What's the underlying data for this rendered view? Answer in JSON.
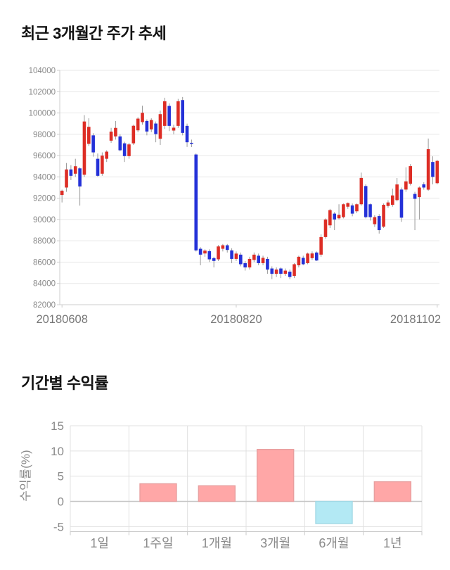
{
  "chart_data": [
    {
      "type": "candlestick",
      "title": "최근 3개월간 주가 추세",
      "ylim": [
        82000,
        104000
      ],
      "y_tick_step": 2000,
      "y_tick_labels": [
        "104000",
        "102000",
        "100000",
        "98000",
        "96000",
        "94000",
        "92000",
        "90000",
        "88000",
        "86000",
        "84000",
        "82000"
      ],
      "x_ticks": [
        {
          "index": 0,
          "label": "20180608"
        },
        {
          "index": 39,
          "label": "20180820"
        },
        {
          "index": 84,
          "label": "20181102"
        }
      ],
      "colors": {
        "up": "#dd2d25",
        "down": "#2431d8",
        "wick": "#999999",
        "grid": "#e7e7e7",
        "axis": "#cccccc",
        "tick_text": "#888888",
        "date_text": "#777777"
      },
      "candles": [
        [
          92300,
          92800,
          91600,
          92700
        ],
        [
          93000,
          95300,
          92600,
          94700
        ],
        [
          94700,
          95100,
          93700,
          94100
        ],
        [
          94300,
          95700,
          94000,
          95000
        ],
        [
          94800,
          94900,
          91300,
          93100
        ],
        [
          94200,
          99800,
          94000,
          99200
        ],
        [
          97100,
          99500,
          96900,
          98700
        ],
        [
          97900,
          98100,
          95900,
          96300
        ],
        [
          95700,
          96200,
          94000,
          94100
        ],
        [
          94300,
          96300,
          94100,
          96000
        ],
        [
          95700,
          96500,
          95400,
          96370
        ],
        [
          97400,
          98600,
          97200,
          98250
        ],
        [
          97800,
          99250,
          97500,
          98600
        ],
        [
          97800,
          98000,
          96400,
          96500
        ],
        [
          97150,
          97300,
          95400,
          95950
        ],
        [
          95950,
          97200,
          95700,
          97050
        ],
        [
          97150,
          98900,
          97000,
          98800
        ],
        [
          98370,
          99600,
          98200,
          99470
        ],
        [
          99140,
          100680,
          98900,
          100020
        ],
        [
          99250,
          99400,
          97900,
          98260
        ],
        [
          98460,
          99500,
          98200,
          99340
        ],
        [
          99010,
          99200,
          97250,
          98020
        ],
        [
          97580,
          100220,
          97000,
          99890
        ],
        [
          98790,
          101430,
          98500,
          101100
        ],
        [
          100660,
          100900,
          98300,
          98790
        ],
        [
          98350,
          98900,
          98000,
          98620
        ],
        [
          98790,
          101320,
          98600,
          101100
        ],
        [
          101210,
          101500,
          97900,
          98130
        ],
        [
          98790,
          99000,
          96810,
          97250
        ],
        [
          97200,
          97500,
          96800,
          97100
        ],
        [
          96100,
          96200,
          87000,
          87100
        ],
        [
          87250,
          87400,
          85700,
          86700
        ],
        [
          86810,
          87200,
          86500,
          87080
        ],
        [
          87030,
          87200,
          86000,
          86260
        ],
        [
          86370,
          86500,
          85500,
          86110
        ],
        [
          86260,
          87600,
          86100,
          87470
        ],
        [
          87250,
          87700,
          87000,
          87580
        ],
        [
          87580,
          87700,
          86900,
          87140
        ],
        [
          87100,
          87300,
          85900,
          86300
        ],
        [
          86300,
          87000,
          86100,
          86800
        ],
        [
          86700,
          86900,
          85600,
          85800
        ],
        [
          85900,
          86100,
          85200,
          85500
        ],
        [
          85500,
          86500,
          85300,
          86300
        ],
        [
          86200,
          86900,
          86000,
          86700
        ],
        [
          86600,
          86800,
          85700,
          85900
        ],
        [
          85900,
          86600,
          85700,
          86400
        ],
        [
          86300,
          86500,
          84900,
          85300
        ],
        [
          85400,
          85600,
          84400,
          84900
        ],
        [
          84900,
          85500,
          84600,
          85300
        ],
        [
          85400,
          85500,
          84500,
          84900
        ],
        [
          84900,
          85400,
          84700,
          85200
        ],
        [
          85100,
          85300,
          84400,
          84600
        ],
        [
          84700,
          85900,
          84500,
          85800
        ],
        [
          85700,
          86600,
          85500,
          86500
        ],
        [
          86400,
          86600,
          85700,
          85800
        ],
        [
          85900,
          86900,
          85800,
          86800
        ],
        [
          86370,
          87000,
          86200,
          86810
        ],
        [
          86900,
          87000,
          86100,
          86150
        ],
        [
          86700,
          88600,
          86500,
          88350
        ],
        [
          88350,
          90100,
          88200,
          90000
        ],
        [
          89450,
          91000,
          89200,
          90880
        ],
        [
          90550,
          90700,
          89000,
          90000
        ],
        [
          90110,
          91430,
          90000,
          90440
        ],
        [
          90220,
          91500,
          90100,
          91430
        ],
        [
          91200,
          91600,
          91000,
          91540
        ],
        [
          91320,
          91500,
          90300,
          90550
        ],
        [
          90770,
          91500,
          90600,
          91430
        ],
        [
          91430,
          94400,
          91300,
          93900
        ],
        [
          93140,
          93300,
          90100,
          90220
        ],
        [
          91430,
          91500,
          89900,
          90220
        ],
        [
          89560,
          90400,
          89300,
          90220
        ],
        [
          90320,
          90500,
          88680,
          89000
        ],
        [
          89330,
          91500,
          89200,
          91380
        ],
        [
          91270,
          91800,
          91100,
          91600
        ],
        [
          91380,
          92900,
          91200,
          92260
        ],
        [
          91820,
          93890,
          91700,
          93290
        ],
        [
          92810,
          93000,
          89780,
          90170
        ],
        [
          92810,
          94900,
          92600,
          93580
        ],
        [
          93360,
          95200,
          93200,
          95010
        ],
        [
          92400,
          92600,
          89000,
          91940
        ],
        [
          92100,
          93100,
          90000,
          93000
        ],
        [
          93300,
          93500,
          92800,
          93000
        ],
        [
          92800,
          97600,
          92700,
          96600
        ],
        [
          95400,
          95930,
          93300,
          94000
        ],
        [
          93410,
          95600,
          93300,
          95500
        ]
      ]
    },
    {
      "type": "bar",
      "title": "기간별 수익률",
      "ylabel": "수익률(%)",
      "categories": [
        "1일",
        "1주일",
        "1개월",
        "3개월",
        "6개월",
        "1년"
      ],
      "values": [
        0.0,
        3.5,
        3.1,
        10.3,
        -4.4,
        3.9
      ],
      "y_ticks": [
        15,
        10,
        5,
        0,
        -5
      ],
      "ylim": [
        -6,
        15
      ],
      "grid": true,
      "legend": "none",
      "colors": {
        "positive": "#ffa7a7",
        "positive_border": "#e89f9f",
        "negative": "#b3e9f4",
        "negative_border": "#a2d9e5",
        "grid": "#e0e0e0",
        "zero_line": "#c6c6c6",
        "frame": "#c9c9c9",
        "text": "#8a8a8a"
      }
    }
  ]
}
